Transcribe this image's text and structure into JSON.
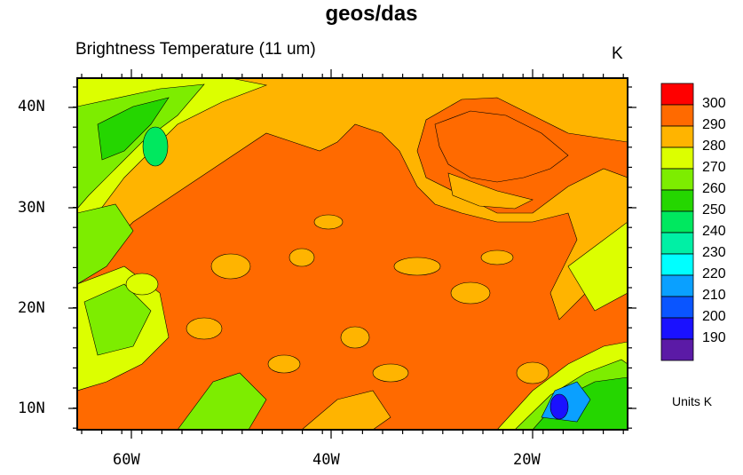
{
  "title": "geos/das",
  "subtitle": "Brightness Temperature (11 um)",
  "units_top": "K",
  "units_bottom": "Units K",
  "axes": {
    "lat_ticks": [
      "40N",
      "30N",
      "20N",
      "10N"
    ],
    "lon_ticks": [
      "60W",
      "40W",
      "20W"
    ],
    "lon_range": [
      -65,
      -10
    ],
    "lat_range": [
      8,
      43
    ]
  },
  "colorbar": {
    "labels": [
      "300",
      "290",
      "280",
      "270",
      "260",
      "250",
      "240",
      "230",
      "220",
      "210",
      "200",
      "190"
    ],
    "colors": [
      "#ff0000",
      "#ff6a00",
      "#ffb400",
      "#dcff00",
      "#7ded00",
      "#25d600",
      "#00e85f",
      "#00f0a5",
      "#00ffff",
      "#0aa0ff",
      "#0a55ff",
      "#1a11ff",
      "#5b1aa6"
    ]
  },
  "map_colors": {
    "sea": "#ff6a00",
    "warm_cloud": "#ffb400",
    "mid_cloud": "#dcff00",
    "cold_cloud": "#7ded00",
    "colder_cloud": "#25d600",
    "very_cold": "#00e85f",
    "coldest": "#1a11ff",
    "cold_core": "#0aa0ff"
  }
}
